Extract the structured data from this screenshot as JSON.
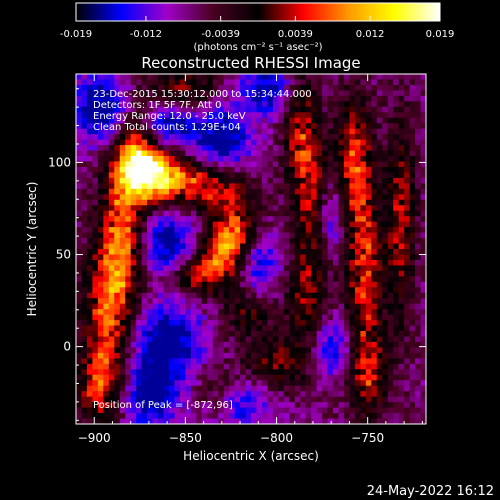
{
  "colorbar": {
    "ticks": [
      "-0.019",
      "-0.012",
      "-0.0039",
      "0.0039",
      "0.012",
      "0.019"
    ],
    "unit_label": "(photons cm⁻² s⁻¹ asec⁻²)",
    "range": [
      -0.019,
      0.019
    ],
    "stops": [
      "#000000",
      "#0000ff",
      "#a000c8",
      "#4a0022",
      "#000000",
      "#ff0000",
      "#ff9a00",
      "#ffff00",
      "#ffffff"
    ]
  },
  "chart_data": {
    "type": "heatmap",
    "title": "Reconstructed RHESSI Image",
    "xlabel": "Heliocentric X (arcsec)",
    "ylabel": "Heliocentric Y (arcsec)",
    "xlim": [
      -910,
      -718
    ],
    "ylim": [
      -42,
      148
    ],
    "x_ticks": [
      -900,
      -850,
      -800,
      -750
    ],
    "y_ticks": [
      0,
      50,
      100
    ],
    "annotations": [
      "23-Dec-2015 15:30:12.000 to 15:34:44.000",
      "Detectors: 1F 5F 7F, Att 0",
      "Energy Range: 12.0 - 25.0 keV",
      "Clean     Total counts: 1.29E+04"
    ],
    "peak_label": "Position of Peak = [-872,96]",
    "peak_position": [
      -872,
      96
    ],
    "blobs": [
      {
        "x": -872,
        "y": 96,
        "v": 0.019,
        "sx": 10,
        "sy": 10
      },
      {
        "x": -878,
        "y": 112,
        "v": 0.012,
        "sx": 8,
        "sy": 18
      },
      {
        "x": -884,
        "y": 70,
        "v": 0.011,
        "sx": 9,
        "sy": 20
      },
      {
        "x": -888,
        "y": 40,
        "v": 0.012,
        "sx": 10,
        "sy": 18
      },
      {
        "x": -893,
        "y": 5,
        "v": 0.011,
        "sx": 10,
        "sy": 20
      },
      {
        "x": -896,
        "y": -25,
        "v": 0.01,
        "sx": 10,
        "sy": 14
      },
      {
        "x": -855,
        "y": 90,
        "v": 0.013,
        "sx": 14,
        "sy": 10
      },
      {
        "x": -830,
        "y": 88,
        "v": 0.009,
        "sx": 12,
        "sy": 10
      },
      {
        "x": -850,
        "y": 140,
        "v": 0.009,
        "sx": 14,
        "sy": 8
      },
      {
        "x": -822,
        "y": 64,
        "v": 0.012,
        "sx": 10,
        "sy": 12
      },
      {
        "x": -830,
        "y": 50,
        "v": 0.011,
        "sx": 10,
        "sy": 10
      },
      {
        "x": -845,
        "y": 38,
        "v": 0.011,
        "sx": 12,
        "sy": 8
      },
      {
        "x": -787,
        "y": 120,
        "v": 0.01,
        "sx": 7,
        "sy": 25
      },
      {
        "x": -780,
        "y": 80,
        "v": 0.009,
        "sx": 7,
        "sy": 25
      },
      {
        "x": -783,
        "y": 25,
        "v": 0.009,
        "sx": 8,
        "sy": 20
      },
      {
        "x": -757,
        "y": 100,
        "v": 0.013,
        "sx": 7,
        "sy": 25
      },
      {
        "x": -752,
        "y": 40,
        "v": 0.012,
        "sx": 7,
        "sy": 28
      },
      {
        "x": -750,
        "y": -15,
        "v": 0.01,
        "sx": 8,
        "sy": 18
      },
      {
        "x": -732,
        "y": 70,
        "v": 0.01,
        "sx": 6,
        "sy": 40
      },
      {
        "x": -815,
        "y": 20,
        "v": 0.008,
        "sx": 10,
        "sy": 10
      },
      {
        "x": -800,
        "y": -10,
        "v": 0.009,
        "sx": 12,
        "sy": 10
      },
      {
        "x": -830,
        "y": -25,
        "v": 0.007,
        "sx": 10,
        "sy": 10
      },
      {
        "x": -895,
        "y": 130,
        "v": -0.012,
        "sx": 12,
        "sy": 14
      },
      {
        "x": -860,
        "y": 120,
        "v": -0.01,
        "sx": 12,
        "sy": 10
      },
      {
        "x": -860,
        "y": 55,
        "v": -0.011,
        "sx": 12,
        "sy": 14
      },
      {
        "x": -830,
        "y": 110,
        "v": -0.011,
        "sx": 12,
        "sy": 14
      },
      {
        "x": -805,
        "y": 140,
        "v": -0.01,
        "sx": 12,
        "sy": 10
      },
      {
        "x": -860,
        "y": 5,
        "v": -0.011,
        "sx": 14,
        "sy": 14
      },
      {
        "x": -810,
        "y": 45,
        "v": -0.01,
        "sx": 8,
        "sy": 14
      },
      {
        "x": -870,
        "y": -25,
        "v": -0.012,
        "sx": 12,
        "sy": 14
      },
      {
        "x": -820,
        "y": -30,
        "v": -0.01,
        "sx": 12,
        "sy": 10
      },
      {
        "x": -770,
        "y": 0,
        "v": -0.009,
        "sx": 8,
        "sy": 12
      },
      {
        "x": -770,
        "y": 70,
        "v": -0.008,
        "sx": 6,
        "sy": 14
      }
    ]
  },
  "footer": {
    "date": "24-May-2022 16:12"
  }
}
